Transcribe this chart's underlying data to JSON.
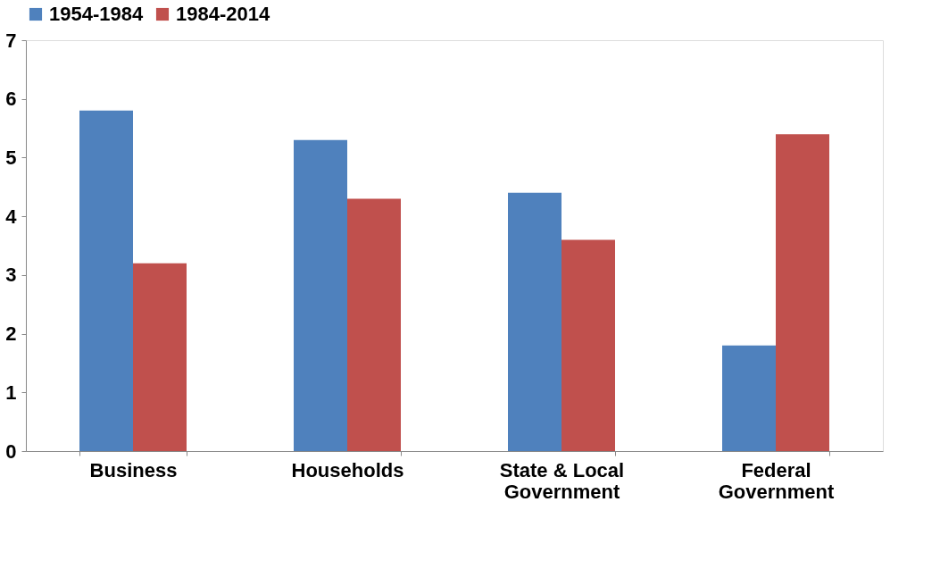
{
  "chart_data": {
    "type": "bar",
    "categories": [
      "Business",
      "Households",
      "State & Local Government",
      "Federal Government"
    ],
    "series": [
      {
        "name": "1954-1984",
        "color": "#4f81bd",
        "values": [
          5.8,
          5.3,
          4.4,
          1.8
        ]
      },
      {
        "name": "1984-2014",
        "color": "#c0504d",
        "values": [
          3.2,
          4.3,
          3.6,
          5.4
        ]
      }
    ],
    "ylim": [
      0,
      7
    ],
    "yticks": [
      0,
      1,
      2,
      3,
      4,
      5,
      6,
      7
    ],
    "grid": false,
    "legend": "top"
  }
}
